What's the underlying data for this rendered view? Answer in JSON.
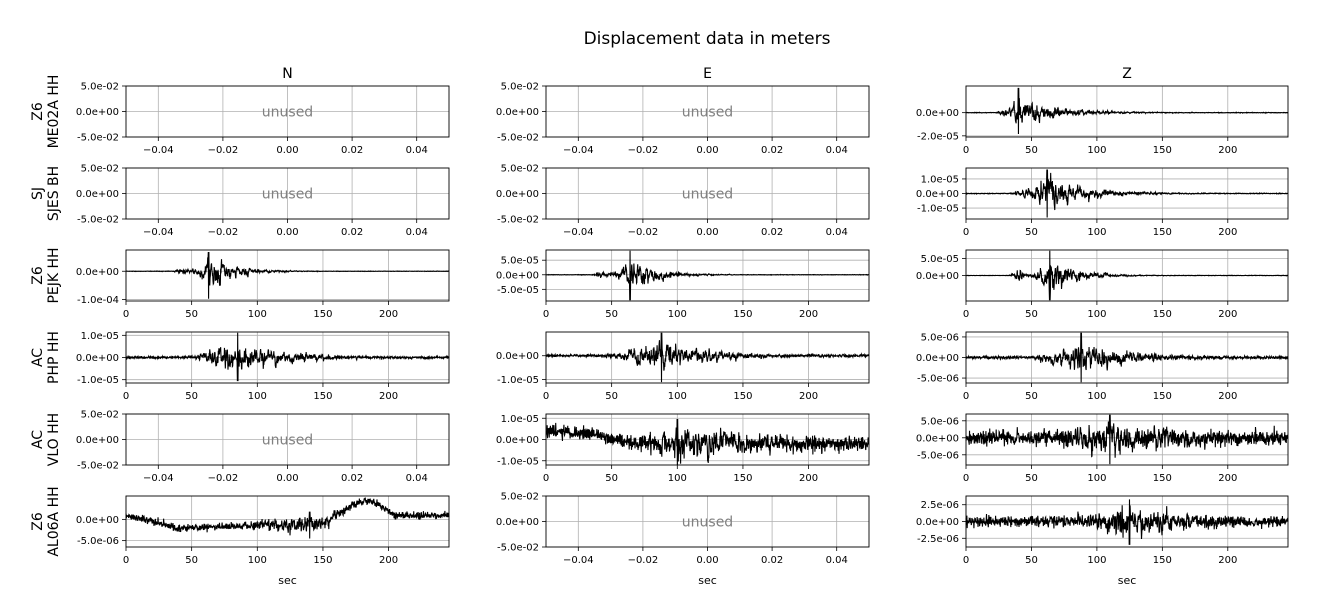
{
  "title": "Displacement data in meters",
  "columns": [
    "N",
    "E",
    "Z"
  ],
  "rows": [
    {
      "net": "Z6",
      "sta": "ME02A HH"
    },
    {
      "net": "SJ",
      "sta": "SJES BH"
    },
    {
      "net": "Z6",
      "sta": "PEJK HH"
    },
    {
      "net": "AC",
      "sta": "PHP HH"
    },
    {
      "net": "AC",
      "sta": "VLO HH"
    },
    {
      "net": "Z6",
      "sta": "AL06A HH"
    }
  ],
  "xlabel": "sec",
  "unused_text": "unused",
  "colors": {
    "trace": "#000000",
    "grid": "#b0b0b0",
    "unused": "#808080"
  },
  "chart_data": {
    "type": "line",
    "title": "Displacement data in meters",
    "xlabel": "sec",
    "grid": true,
    "panels": [
      {
        "row": 0,
        "col": 0,
        "unused": true,
        "xlim": [
          -0.05,
          0.05
        ],
        "ylim": [
          -0.05,
          0.05
        ],
        "xticks": [
          -0.04,
          -0.02,
          0.0,
          0.02,
          0.04
        ],
        "xtick_labels": [
          "−0.04",
          "−0.02",
          "0.00",
          "0.02",
          "0.04"
        ],
        "yticks": [
          0.05,
          0.0,
          -0.05
        ],
        "ytick_labels": [
          "5.0e-02",
          "0.0e+00",
          "-5.0e-02"
        ]
      },
      {
        "row": 0,
        "col": 1,
        "unused": true,
        "xlim": [
          -0.05,
          0.05
        ],
        "ylim": [
          -0.05,
          0.05
        ],
        "xticks": [
          -0.04,
          -0.02,
          0.0,
          0.02,
          0.04
        ],
        "xtick_labels": [
          "−0.04",
          "−0.02",
          "0.00",
          "0.02",
          "0.04"
        ],
        "yticks": [
          0.05,
          0.0,
          -0.05
        ],
        "ytick_labels": [
          "5.0e-02",
          "0.0e+00",
          "-5.0e-02"
        ]
      },
      {
        "row": 0,
        "col": 2,
        "unused": false,
        "xlim": [
          0,
          246
        ],
        "ylim": [
          -2.1e-05,
          2.3e-05
        ],
        "xticks": [
          0,
          50,
          100,
          150,
          200
        ],
        "xtick_labels": [
          "0",
          "50",
          "100",
          "150",
          "200"
        ],
        "yticks": [
          0.0,
          -2e-05
        ],
        "ytick_labels": [
          "0.0e+00",
          "-2.0e-05"
        ],
        "signal": {
          "noise": 2e-07,
          "onset": 22,
          "peak_t": 40,
          "peak_amp": 2.2e-05,
          "peak_neg": 1.9e-05,
          "rise": 14,
          "decay": 30,
          "offset": 0,
          "drift": [],
          "freq": 1.2
        }
      },
      {
        "row": 1,
        "col": 0,
        "unused": true,
        "xlim": [
          -0.05,
          0.05
        ],
        "ylim": [
          -0.05,
          0.05
        ],
        "xticks": [
          -0.04,
          -0.02,
          0.0,
          0.02,
          0.04
        ],
        "xtick_labels": [
          "−0.04",
          "−0.02",
          "0.00",
          "0.02",
          "0.04"
        ],
        "yticks": [
          0.05,
          0.0,
          -0.05
        ],
        "ytick_labels": [
          "5.0e-02",
          "0.0e+00",
          "-5.0e-02"
        ]
      },
      {
        "row": 1,
        "col": 1,
        "unused": true,
        "xlim": [
          -0.05,
          0.05
        ],
        "ylim": [
          -0.05,
          0.05
        ],
        "xticks": [
          -0.04,
          -0.02,
          0.0,
          0.02,
          0.04
        ],
        "xtick_labels": [
          "−0.04",
          "−0.02",
          "0.00",
          "0.02",
          "0.04"
        ],
        "yticks": [
          0.05,
          0.0,
          -0.05
        ],
        "ytick_labels": [
          "5.0e-02",
          "0.0e+00",
          "-5.0e-02"
        ]
      },
      {
        "row": 1,
        "col": 2,
        "unused": false,
        "xlim": [
          0,
          246
        ],
        "ylim": [
          -1.75e-05,
          1.75e-05
        ],
        "xticks": [
          0,
          50,
          100,
          150,
          200
        ],
        "xtick_labels": [
          "0",
          "50",
          "100",
          "150",
          "200"
        ],
        "yticks": [
          1e-05,
          0.0,
          -1e-05
        ],
        "ytick_labels": [
          "1.0e-05",
          "0.0e+00",
          "-1.0e-05"
        ],
        "signal": {
          "noise": 2e-07,
          "onset": 32,
          "peak_t": 62,
          "peak_amp": 1.7e-05,
          "peak_neg": 1.7e-05,
          "rise": 16,
          "decay": 30,
          "offset": 0,
          "drift": [],
          "freq": 1.0
        }
      },
      {
        "row": 2,
        "col": 0,
        "unused": false,
        "xlim": [
          0,
          246
        ],
        "ylim": [
          -0.000105,
          7.5e-05
        ],
        "xticks": [
          0,
          50,
          100,
          150,
          200
        ],
        "xtick_labels": [
          "0",
          "50",
          "100",
          "150",
          "200"
        ],
        "yticks": [
          0.0,
          -0.0001
        ],
        "ytick_labels": [
          "0.0e+00",
          "-1.0e-04"
        ],
        "signal": {
          "noise": 5e-07,
          "onset": 35,
          "peak_t": 63,
          "peak_amp": 7e-05,
          "peak_neg": 0.0001,
          "rise": 4,
          "decay": 20,
          "offset": 0,
          "drift": [],
          "freq": 1.0,
          "pre": {
            "t": 42,
            "amp": 1e-05
          }
        }
      },
      {
        "row": 2,
        "col": 1,
        "unused": false,
        "xlim": [
          0,
          246
        ],
        "ylim": [
          -9e-05,
          8.5e-05
        ],
        "xticks": [
          0,
          50,
          100,
          150,
          200
        ],
        "xtick_labels": [
          "0",
          "50",
          "100",
          "150",
          "200"
        ],
        "yticks": [
          5e-05,
          0.0,
          -5e-05
        ],
        "ytick_labels": [
          "5.0e-05",
          "0.0e+00",
          "-5.0e-05"
        ],
        "signal": {
          "noise": 6e-07,
          "onset": 35,
          "peak_t": 64,
          "peak_amp": 8.5e-05,
          "peak_neg": 9e-05,
          "rise": 4,
          "decay": 20,
          "offset": 0,
          "drift": [],
          "freq": 1.0,
          "pre": {
            "t": 42,
            "amp": 1.3e-05
          }
        }
      },
      {
        "row": 2,
        "col": 2,
        "unused": false,
        "xlim": [
          0,
          246
        ],
        "ylim": [
          -7.5e-05,
          7.5e-05
        ],
        "xticks": [
          0,
          50,
          100,
          150,
          200
        ],
        "xtick_labels": [
          "0",
          "50",
          "100",
          "150",
          "200"
        ],
        "yticks": [
          5e-05,
          0.0
        ],
        "ytick_labels": [
          "5.0e-05",
          "0.0e+00"
        ],
        "signal": {
          "noise": 5e-07,
          "onset": 36,
          "peak_t": 64,
          "peak_amp": 7.5e-05,
          "peak_neg": 7.5e-05,
          "rise": 4,
          "decay": 20,
          "offset": 0,
          "drift": [],
          "freq": 1.0,
          "pre": {
            "t": 40,
            "amp": 1.8e-05
          }
        }
      },
      {
        "row": 3,
        "col": 0,
        "unused": false,
        "xlim": [
          0,
          246
        ],
        "ylim": [
          -1.15e-05,
          1.15e-05
        ],
        "xticks": [
          0,
          50,
          100,
          150,
          200
        ],
        "xtick_labels": [
          "0",
          "50",
          "100",
          "150",
          "200"
        ],
        "yticks": [
          1e-05,
          0.0,
          -1e-05
        ],
        "ytick_labels": [
          "1.0e-05",
          "0.0e+00",
          "-1.0e-05"
        ],
        "signal": {
          "noise": 4e-07,
          "onset": 40,
          "peak_t": 85,
          "peak_amp": 1.15e-05,
          "peak_neg": 1.1e-05,
          "rise": 25,
          "decay": 35,
          "offset": 0,
          "drift": [],
          "freq": 1.0
        }
      },
      {
        "row": 3,
        "col": 1,
        "unused": false,
        "xlim": [
          0,
          246
        ],
        "ylim": [
          -1.15e-05,
          1e-05
        ],
        "xticks": [
          0,
          50,
          100,
          150,
          200
        ],
        "xtick_labels": [
          "0",
          "50",
          "100",
          "150",
          "200"
        ],
        "yticks": [
          0.0,
          -1e-05
        ],
        "ytick_labels": [
          "0.0e+00",
          "-1.0e-05"
        ],
        "signal": {
          "noise": 4e-07,
          "onset": 40,
          "peak_t": 88,
          "peak_amp": 1e-05,
          "peak_neg": 1.15e-05,
          "rise": 25,
          "decay": 35,
          "offset": 0,
          "drift": [],
          "freq": 1.0
        }
      },
      {
        "row": 3,
        "col": 2,
        "unused": false,
        "xlim": [
          0,
          246
        ],
        "ylim": [
          -6.2e-06,
          6.2e-06
        ],
        "xticks": [
          0,
          50,
          100,
          150,
          200
        ],
        "xtick_labels": [
          "0",
          "50",
          "100",
          "150",
          "200"
        ],
        "yticks": [
          5e-06,
          0.0,
          -5e-06
        ],
        "ytick_labels": [
          "5.0e-06",
          "0.0e+00",
          "-5.0e-06"
        ],
        "signal": {
          "noise": 3e-07,
          "onset": 42,
          "peak_t": 88,
          "peak_amp": 6.2e-06,
          "peak_neg": 6.2e-06,
          "rise": 30,
          "decay": 35,
          "offset": 0,
          "drift": [],
          "freq": 1.0
        }
      },
      {
        "row": 4,
        "col": 0,
        "unused": true,
        "xlim": [
          -0.05,
          0.05
        ],
        "ylim": [
          -0.05,
          0.05
        ],
        "xticks": [
          -0.04,
          -0.02,
          0.0,
          0.02,
          0.04
        ],
        "xtick_labels": [
          "−0.04",
          "−0.02",
          "0.00",
          "0.02",
          "0.04"
        ],
        "yticks": [
          0.05,
          0.0,
          -0.05
        ],
        "ytick_labels": [
          "5.0e-02",
          "0.0e+00",
          "-5.0e-02"
        ]
      },
      {
        "row": 4,
        "col": 1,
        "unused": false,
        "xlim": [
          0,
          246
        ],
        "ylim": [
          -1.2e-05,
          1.2e-05
        ],
        "xticks": [
          0,
          50,
          100,
          150,
          200
        ],
        "xtick_labels": [
          "0",
          "50",
          "100",
          "150",
          "200"
        ],
        "yticks": [
          1e-05,
          0.0,
          -1e-05
        ],
        "ytick_labels": [
          "1.0e-05",
          "0.0e+00",
          "-1.0e-05"
        ],
        "signal": {
          "noise": 2.6e-06,
          "onset": 50,
          "peak_t": 100,
          "peak_amp": 1.2e-05,
          "peak_neg": 1.2e-05,
          "rise": 40,
          "decay": 60,
          "offset": 0,
          "drift": [
            [
              0,
              4e-06
            ],
            [
              30,
              3e-06
            ],
            [
              70,
              -2e-06
            ],
            [
              246,
              -2e-06
            ]
          ],
          "freq": 1.0
        }
      },
      {
        "row": 4,
        "col": 2,
        "unused": false,
        "xlim": [
          0,
          246
        ],
        "ylim": [
          -8e-06,
          7e-06
        ],
        "xticks": [
          0,
          50,
          100,
          150,
          200
        ],
        "xtick_labels": [
          "0",
          "50",
          "100",
          "150",
          "200"
        ],
        "yticks": [
          5e-06,
          0.0,
          -5e-06
        ],
        "ytick_labels": [
          "5.0e-06",
          "0.0e+00",
          "-5.0e-06"
        ],
        "signal": {
          "noise": 1.6e-06,
          "onset": 40,
          "peak_t": 110,
          "peak_amp": 7e-06,
          "peak_neg": 8e-06,
          "rise": 50,
          "decay": 60,
          "offset": 0,
          "drift": [],
          "freq": 1.0
        }
      },
      {
        "row": 5,
        "col": 0,
        "unused": false,
        "xlim": [
          0,
          246
        ],
        "ylim": [
          -6.5e-06,
          5.5e-06
        ],
        "xticks": [
          0,
          50,
          100,
          150,
          200
        ],
        "xtick_labels": [
          "0",
          "50",
          "100",
          "150",
          "200"
        ],
        "yticks": [
          0.0,
          -5e-06
        ],
        "ytick_labels": [
          "0.0e+00",
          "-5.0e-06"
        ],
        "signal": {
          "noise": 7e-07,
          "onset": 60,
          "peak_t": 140,
          "peak_amp": 3e-06,
          "peak_neg": 3.5e-06,
          "rise": 50,
          "decay": 30,
          "offset": 0,
          "drift": [
            [
              0,
              1e-06
            ],
            [
              40,
              -2e-06
            ],
            [
              100,
              -1.5e-06
            ],
            [
              150,
              -1e-06
            ],
            [
              175,
              4e-06
            ],
            [
              190,
              4e-06
            ],
            [
              205,
              1e-06
            ],
            [
              246,
              1e-06
            ]
          ],
          "freq": 1.0
        }
      },
      {
        "row": 5,
        "col": 1,
        "unused": true,
        "xlim": [
          -0.05,
          0.05
        ],
        "ylim": [
          -0.05,
          0.05
        ],
        "xticks": [
          -0.04,
          -0.02,
          0.0,
          0.02,
          0.04
        ],
        "xtick_labels": [
          "−0.04",
          "−0.02",
          "0.00",
          "0.02",
          "0.04"
        ],
        "yticks": [
          0.05,
          0.0,
          -0.05
        ],
        "ytick_labels": [
          "5.0e-02",
          "0.0e+00",
          "-5.0e-02"
        ]
      },
      {
        "row": 5,
        "col": 2,
        "unused": false,
        "xlim": [
          0,
          246
        ],
        "ylim": [
          -3.8e-06,
          3.8e-06
        ],
        "xticks": [
          0,
          50,
          100,
          150,
          200
        ],
        "xtick_labels": [
          "0",
          "50",
          "100",
          "150",
          "200"
        ],
        "yticks": [
          2.5e-06,
          0.0,
          -2.5e-06
        ],
        "ytick_labels": [
          "2.5e-06",
          "0.0e+00",
          "-2.5e-06"
        ],
        "signal": {
          "noise": 6e-07,
          "onset": 40,
          "peak_t": 125,
          "peak_amp": 3.4e-06,
          "peak_neg": 3.6e-06,
          "rise": 50,
          "decay": 50,
          "offset": 0,
          "drift": [],
          "freq": 1.0
        }
      }
    ]
  }
}
